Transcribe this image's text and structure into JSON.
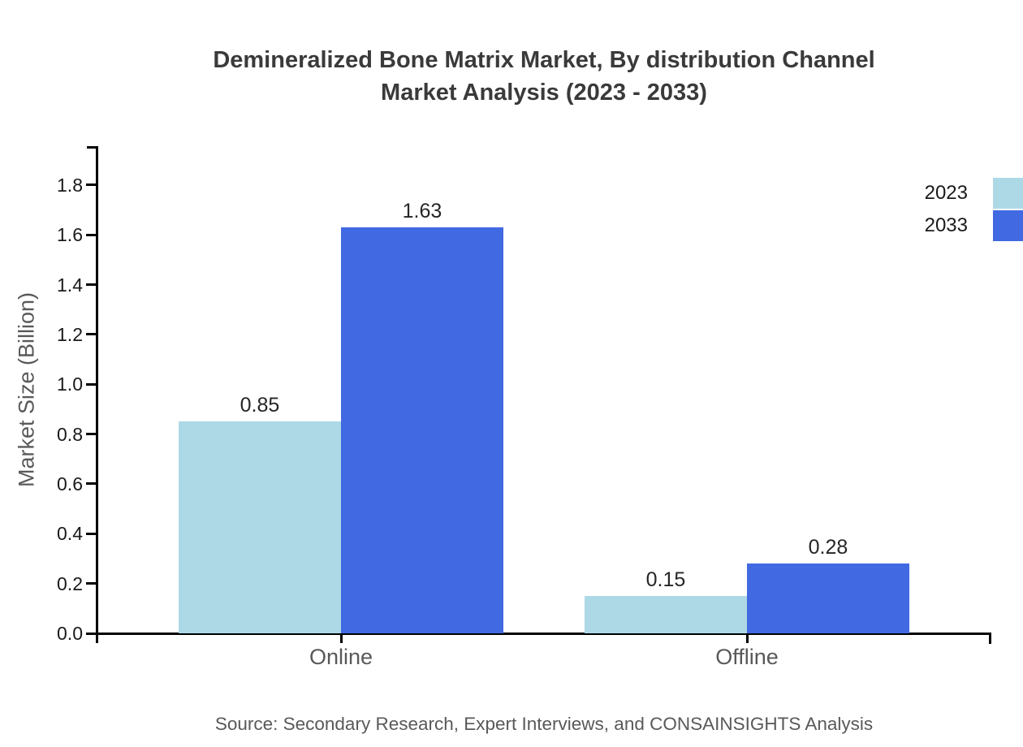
{
  "title": {
    "line1": "Demineralized Bone Matrix Market, By distribution Channel",
    "line2": "Market Analysis (2023 - 2033)"
  },
  "chart_data": {
    "type": "bar",
    "title": "Demineralized Bone Matrix Market, By distribution Channel Market Analysis (2023 - 2033)",
    "categories": [
      "Online",
      "Offline"
    ],
    "series": [
      {
        "name": "2023",
        "color": "#ADD8E6",
        "values": [
          0.85,
          0.15
        ],
        "value_labels": [
          "0.85",
          "0.15"
        ]
      },
      {
        "name": "2033",
        "color": "#4169E1",
        "values": [
          1.63,
          0.28
        ],
        "value_labels": [
          "1.63",
          "0.28"
        ]
      }
    ],
    "xlabel": "",
    "ylabel": "Market Size (Billion)",
    "ylim": [
      0,
      1.95
    ],
    "yticks": [
      0.0,
      0.2,
      0.4,
      0.6,
      0.8,
      1.0,
      1.2,
      1.4,
      1.6,
      1.8
    ],
    "ytick_labels": [
      "0.0",
      "0.2",
      "0.4",
      "0.6",
      "0.8",
      "1.0",
      "1.2",
      "1.4",
      "1.6",
      "1.8"
    ],
    "grid": false,
    "legend_position": "upper-right-outside"
  },
  "source": "Source: Secondary Research, Expert Interviews, and CONSAINSIGHTS Analysis",
  "colors": {
    "series_2023": "#ADD8E6",
    "series_2033": "#4169E1",
    "axis": "#000000",
    "title_text": "#3A3A3A",
    "muted_text": "#595959",
    "tick_text": "#1A1A1A",
    "background": "#FFFFFF"
  }
}
